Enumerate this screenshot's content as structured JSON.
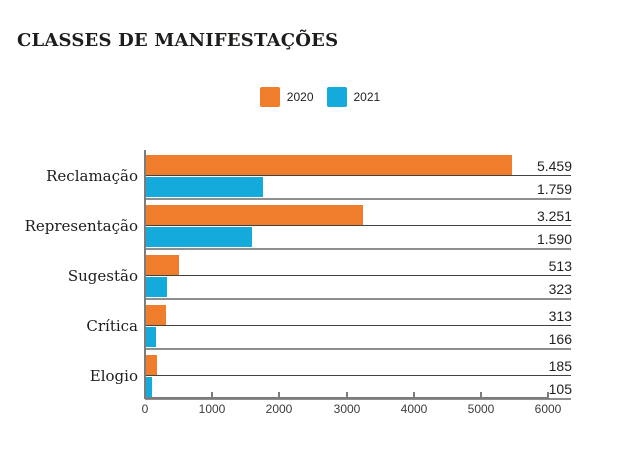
{
  "title": "CLASSES DE MANIFESTAÇÕES",
  "legend": {
    "items": [
      {
        "label": "2020",
        "color": "#ef7d2b"
      },
      {
        "label": "2021",
        "color": "#14aadb"
      }
    ]
  },
  "chart_data": {
    "type": "bar",
    "orientation": "horizontal",
    "title": "CLASSES DE MANIFESTAÇÕES",
    "categories": [
      "Reclamação",
      "Representação",
      "Sugestão",
      "Crítica",
      "Elogio"
    ],
    "series": [
      {
        "name": "2020",
        "color": "#ef7d2b",
        "values": [
          5459,
          3251,
          513,
          313,
          185
        ],
        "labels": [
          "5.459",
          "3.251",
          "513",
          "313",
          "185"
        ]
      },
      {
        "name": "2021",
        "color": "#14aadb",
        "values": [
          1759,
          1590,
          323,
          166,
          105
        ],
        "labels": [
          "1.759",
          "1.590",
          "323",
          "166",
          "105"
        ]
      }
    ],
    "xlabel": "",
    "ylabel": "",
    "xlim": [
      0,
      6000
    ],
    "x_ticks": [
      "0",
      "1000",
      "2000",
      "3000",
      "4000",
      "5000",
      "6000"
    ],
    "legend_position": "top-center",
    "grid": "off",
    "value_labels_shown": true,
    "line_colors": {
      "value_underline": "#45413f",
      "group_separator": "#8e8e8e",
      "axis": "#7c7c7c"
    }
  }
}
